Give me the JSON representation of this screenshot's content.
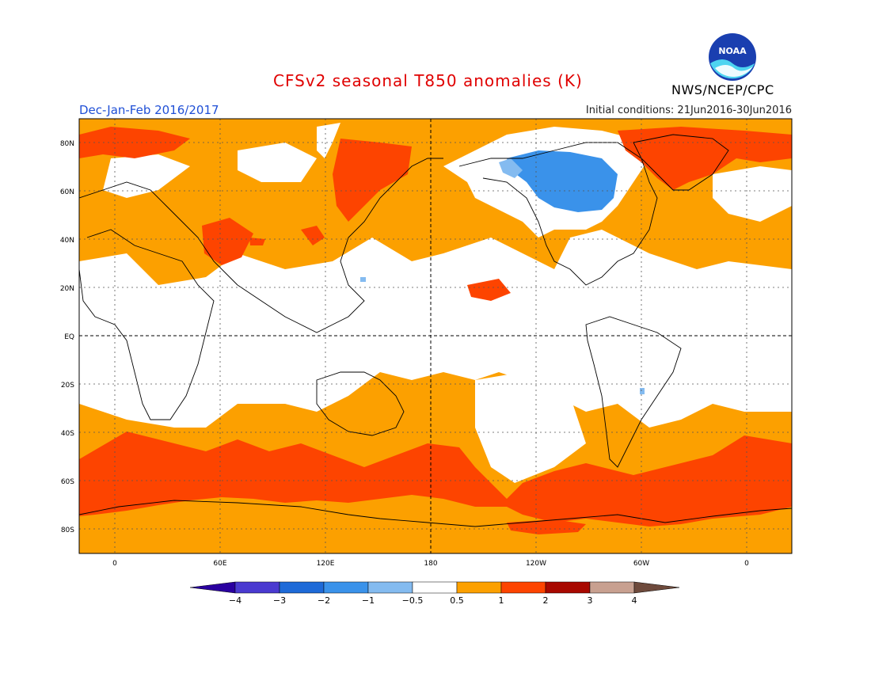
{
  "title": "CFSv2 seasonal T850 anomalies (K)",
  "season": "Dec-Jan-Feb 2016/2017",
  "initial_conditions": "Initial conditions: 21Jun2016-30Jun2016",
  "agency": "NWS/NCEP/CPC",
  "logo_text": "NOAA",
  "lat_ticks": [
    "80N",
    "60N",
    "40N",
    "20N",
    "EQ",
    "20S",
    "40S",
    "60S",
    "80S"
  ],
  "lon_ticks": [
    "0",
    "60E",
    "120E",
    "180",
    "120W",
    "60W",
    "0"
  ],
  "legend_labels": [
    "-4",
    "-3",
    "-2",
    "-1",
    "-0.5",
    "0.5",
    "1",
    "2",
    "3",
    "4"
  ],
  "colors": {
    "below_m4": "#2a00a0",
    "m4_m3": "#4a3ad0",
    "m3_m2": "#1e6ad8",
    "m2_m1": "#3a92ea",
    "m1_m05": "#84bbf0",
    "neutral": "#ffffff",
    "p05_p1": "#fca000",
    "p1_p2": "#fd4400",
    "p2_p3": "#a80800",
    "p3_p4": "#c8a090",
    "above_p4": "#6e4a3c",
    "title": "#e00000",
    "season": "#1f4fd6"
  }
}
